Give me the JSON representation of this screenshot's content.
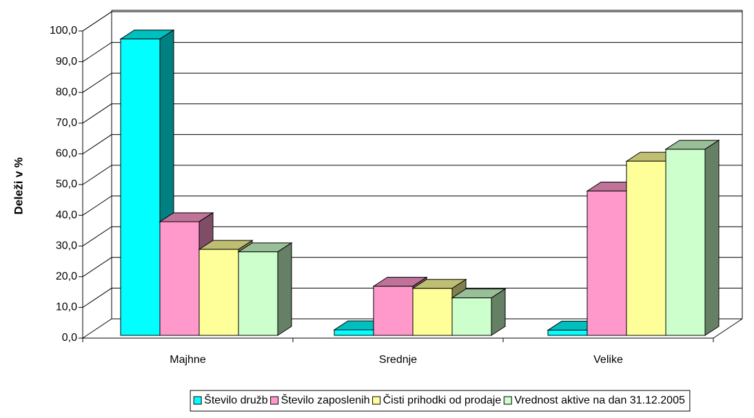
{
  "chart_data": {
    "type": "bar3d",
    "y_label": "Deleži v %",
    "categories": [
      "Majhne",
      "Srednje",
      "Velike"
    ],
    "series": [
      {
        "name": "Število družb",
        "color": "#00ffff",
        "values": [
          96.5,
          1.8,
          1.7
        ]
      },
      {
        "name": "Število zaposlenih",
        "color": "#ff99cc",
        "values": [
          37.0,
          16.0,
          47.0
        ]
      },
      {
        "name": "Čisti prihodki od prodaje",
        "color": "#ffff99",
        "values": [
          28.0,
          15.3,
          56.7
        ]
      },
      {
        "name": "Vrednost aktive na dan 31.12.2005",
        "color": "#ccffcc",
        "values": [
          27.2,
          12.2,
          60.6
        ]
      }
    ],
    "ylim": [
      0,
      100
    ],
    "yticks": [
      {
        "value": 0,
        "label": "0,0"
      },
      {
        "value": 10,
        "label": "10,0"
      },
      {
        "value": 20,
        "label": "20,0"
      },
      {
        "value": 30,
        "label": "30,0"
      },
      {
        "value": 40,
        "label": "40,0"
      },
      {
        "value": 50,
        "label": "50,0"
      },
      {
        "value": 60,
        "label": "60,0"
      },
      {
        "value": 70,
        "label": "70,0"
      },
      {
        "value": 80,
        "label": "80,0"
      },
      {
        "value": 90,
        "label": "90,0"
      },
      {
        "value": 100,
        "label": "100,0"
      }
    ],
    "grid": true,
    "legend": "bottom"
  }
}
